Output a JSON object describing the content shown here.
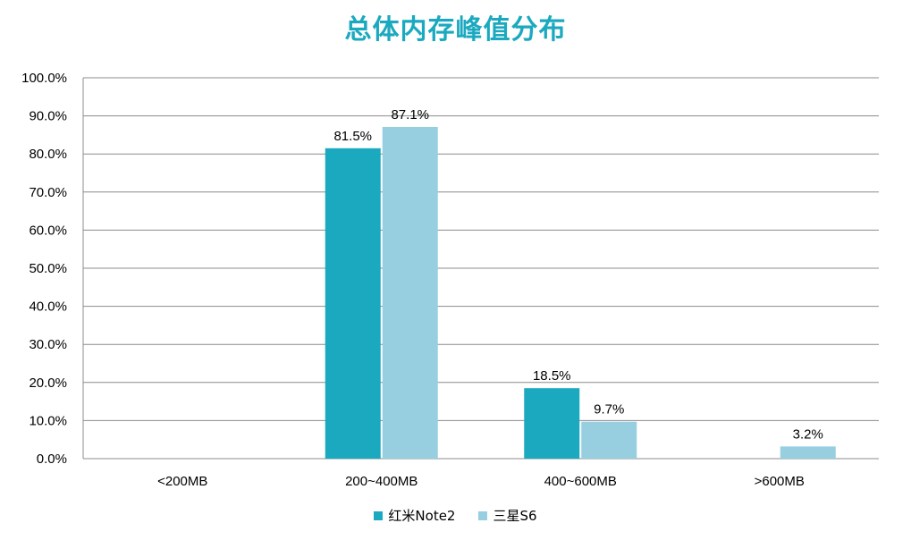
{
  "chart_data": {
    "type": "bar",
    "title": "总体内存峰值分布",
    "xlabel": "",
    "ylabel": "",
    "categories": [
      "<200MB",
      "200~400MB",
      "400~600MB",
      ">600MB"
    ],
    "series": [
      {
        "name": "红米Note2",
        "color": "#1BA9BF",
        "values": [
          0,
          81.5,
          18.5,
          0
        ],
        "labels": [
          "",
          "81.5%",
          "18.5%",
          ""
        ]
      },
      {
        "name": "三星S6",
        "color": "#97CFE0",
        "values": [
          0,
          87.1,
          9.7,
          3.2
        ],
        "labels": [
          "",
          "87.1%",
          "9.7%",
          "3.2%"
        ]
      }
    ],
    "ylim": [
      0,
      100
    ],
    "yticks": [
      "0.0%",
      "10.0%",
      "20.0%",
      "30.0%",
      "40.0%",
      "50.0%",
      "60.0%",
      "70.0%",
      "80.0%",
      "90.0%",
      "100.0%"
    ],
    "grid": true,
    "legend_position": "bottom"
  }
}
